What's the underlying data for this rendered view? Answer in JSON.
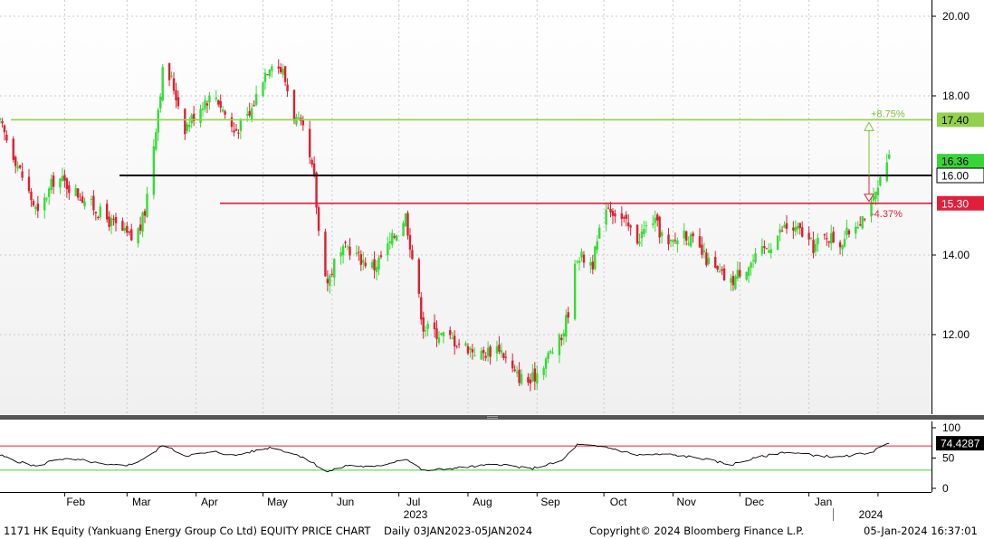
{
  "footer": {
    "title": "1171 HK Equity (Yankuang Energy Group Co Ltd) EQUITY PRICE CHART",
    "range": "Daily 03JAN2023-05JAN2024",
    "copyright": "Copyright© 2024 Bloomberg Finance L.P.",
    "timestamp": "05-Jan-2024  16:37:01"
  },
  "chart_data": [
    {
      "type": "candlestick",
      "ylim": [
        10.2,
        20.3
      ],
      "y_ticks": [
        "20.00",
        "18.00",
        "14.00",
        "12.00"
      ],
      "x_ticks": [
        "Feb",
        "Mar",
        "Apr",
        "May",
        "Jun",
        "Jul",
        "Aug",
        "Sep",
        "Oct",
        "Nov",
        "Dec",
        "Jan"
      ],
      "x_year_labels": [
        "2023",
        "2024"
      ],
      "close_path": [
        [
          "2023-01-03",
          17.3
        ],
        [
          "2023-01-10",
          16.4
        ],
        [
          "2023-01-20",
          15.0
        ],
        [
          "2023-01-28",
          16.0
        ],
        [
          "2023-02-10",
          15.4
        ],
        [
          "2023-02-20",
          14.9
        ],
        [
          "2023-03-03",
          14.4
        ],
        [
          "2023-03-07",
          14.7
        ],
        [
          "2023-03-09",
          15.1
        ],
        [
          "2023-03-13",
          16.8
        ],
        [
          "2023-03-17",
          18.6
        ],
        [
          "2023-03-21",
          18.4
        ],
        [
          "2023-03-27",
          17.2
        ],
        [
          "2023-04-05",
          17.9
        ],
        [
          "2023-04-10",
          18.0
        ],
        [
          "2023-04-18",
          17.1
        ],
        [
          "2023-04-25",
          17.5
        ],
        [
          "2023-05-01",
          18.5
        ],
        [
          "2023-05-05",
          18.9
        ],
        [
          "2023-05-10",
          18.6
        ],
        [
          "2023-05-15",
          17.5
        ],
        [
          "2023-05-19",
          17.1
        ],
        [
          "2023-05-24",
          15.9
        ],
        [
          "2023-05-26",
          14.6
        ],
        [
          "2023-05-30",
          13.3
        ],
        [
          "2023-06-02",
          13.8
        ],
        [
          "2023-06-08",
          14.2
        ],
        [
          "2023-06-14",
          13.9
        ],
        [
          "2023-06-20",
          13.7
        ],
        [
          "2023-06-26",
          14.2
        ],
        [
          "2023-07-04",
          15.0
        ],
        [
          "2023-07-12",
          12.2
        ],
        [
          "2023-07-20",
          12.0
        ],
        [
          "2023-07-28",
          11.8
        ],
        [
          "2023-08-07",
          11.5
        ],
        [
          "2023-08-15",
          11.7
        ],
        [
          "2023-08-22",
          11.0
        ],
        [
          "2023-08-29",
          10.8
        ],
        [
          "2023-09-05",
          11.4
        ],
        [
          "2023-09-12",
          11.9
        ],
        [
          "2023-09-15",
          12.6
        ],
        [
          "2023-09-19",
          14.0
        ],
        [
          "2023-09-26",
          13.8
        ],
        [
          "2023-10-02",
          15.3
        ],
        [
          "2023-10-09",
          14.9
        ],
        [
          "2023-10-16",
          14.4
        ],
        [
          "2023-10-23",
          14.9
        ],
        [
          "2023-10-30",
          14.2
        ],
        [
          "2023-11-06",
          14.6
        ],
        [
          "2023-11-13",
          14.1
        ],
        [
          "2023-11-20",
          13.6
        ],
        [
          "2023-11-27",
          13.3
        ],
        [
          "2023-12-01",
          13.6
        ],
        [
          "2023-12-08",
          13.9
        ],
        [
          "2023-12-15",
          14.3
        ],
        [
          "2023-12-21",
          14.7
        ],
        [
          "2023-12-28",
          14.6
        ],
        [
          "2024-01-03",
          14.2
        ],
        [
          "2024-01-09",
          14.5
        ],
        [
          "2024-01-15",
          14.3
        ],
        [
          "2024-01-22",
          14.8
        ],
        [
          "2024-01-29",
          15.2
        ],
        [
          "2024-02-02",
          15.8
        ],
        [
          "2024-02-06",
          16.4
        ]
      ],
      "lines": [
        {
          "value": 17.4,
          "label": "17.40",
          "color": "#92d050"
        },
        {
          "value": 16.36,
          "label": "16.36",
          "color": "#39d43a"
        },
        {
          "value": 16.0,
          "label": "16.00",
          "color": "#000000"
        },
        {
          "value": 15.3,
          "label": "15.30",
          "color": "#e0203a"
        }
      ],
      "annotations": [
        {
          "text": "+8.75%",
          "color": "#7cc13a"
        },
        {
          "text": "-4.37%",
          "color": "#e0203a"
        }
      ],
      "colors": {
        "up": "#33dd33",
        "down": "#dd1f2f"
      }
    },
    {
      "type": "line",
      "name": "RSI",
      "ylim": [
        0,
        100
      ],
      "y_ticks": [
        "100",
        "50",
        "0"
      ],
      "levels": [
        70,
        30
      ],
      "last_value": 74.4287,
      "last_label": "74.4287",
      "x_ticks": [
        "Feb",
        "Mar",
        "Apr",
        "May",
        "Jun",
        "Jul",
        "Aug",
        "Sep",
        "Oct",
        "Nov",
        "Dec",
        "Jan"
      ],
      "rsi_path": [
        [
          "2023-01-03",
          55
        ],
        [
          "2023-01-10",
          45
        ],
        [
          "2023-01-20",
          36
        ],
        [
          "2023-01-28",
          49
        ],
        [
          "2023-02-10",
          46
        ],
        [
          "2023-02-20",
          38
        ],
        [
          "2023-03-03",
          39
        ],
        [
          "2023-03-13",
          58
        ],
        [
          "2023-03-17",
          72
        ],
        [
          "2023-03-27",
          54
        ],
        [
          "2023-04-10",
          60
        ],
        [
          "2023-04-18",
          54
        ],
        [
          "2023-05-05",
          68
        ],
        [
          "2023-05-19",
          52
        ],
        [
          "2023-05-26",
          36
        ],
        [
          "2023-05-30",
          27
        ],
        [
          "2023-06-08",
          38
        ],
        [
          "2023-06-20",
          35
        ],
        [
          "2023-07-04",
          49
        ],
        [
          "2023-07-12",
          29
        ],
        [
          "2023-07-28",
          34
        ],
        [
          "2023-08-15",
          40
        ],
        [
          "2023-08-29",
          32
        ],
        [
          "2023-09-12",
          45
        ],
        [
          "2023-09-19",
          72
        ],
        [
          "2023-10-02",
          68
        ],
        [
          "2023-10-16",
          55
        ],
        [
          "2023-10-30",
          56
        ],
        [
          "2023-11-13",
          50
        ],
        [
          "2023-11-27",
          39
        ],
        [
          "2023-12-08",
          50
        ],
        [
          "2023-12-21",
          60
        ],
        [
          "2024-01-03",
          55
        ],
        [
          "2024-01-15",
          51
        ],
        [
          "2024-01-29",
          60
        ],
        [
          "2024-02-06",
          74.4
        ]
      ],
      "colors": {
        "line": "#000000",
        "upper": "#e0203a",
        "lower": "#39d43a"
      }
    }
  ]
}
